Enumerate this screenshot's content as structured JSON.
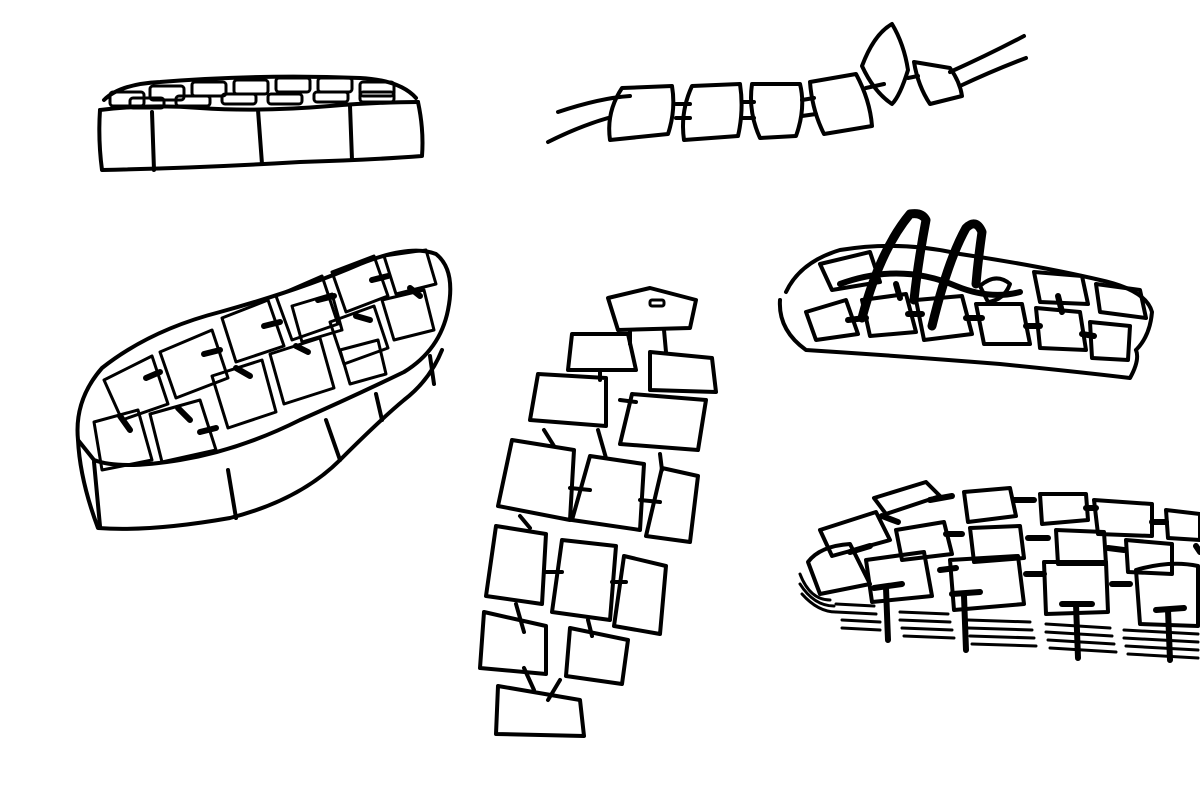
{
  "sheet": {
    "background": "#ffffff",
    "ink": "#000000",
    "sketches": [
      {
        "id": "flat-sole-side-view",
        "kind": "sole-side-view"
      },
      {
        "id": "hinged-tile-strap",
        "kind": "strap"
      },
      {
        "id": "sole-perspective-tiled",
        "kind": "sole-perspective"
      },
      {
        "id": "sole-top-view-grid",
        "kind": "sole-top-view"
      },
      {
        "id": "sandal-with-straps",
        "kind": "sandal"
      },
      {
        "id": "layered-tile-sole",
        "kind": "layered-sole"
      }
    ]
  }
}
